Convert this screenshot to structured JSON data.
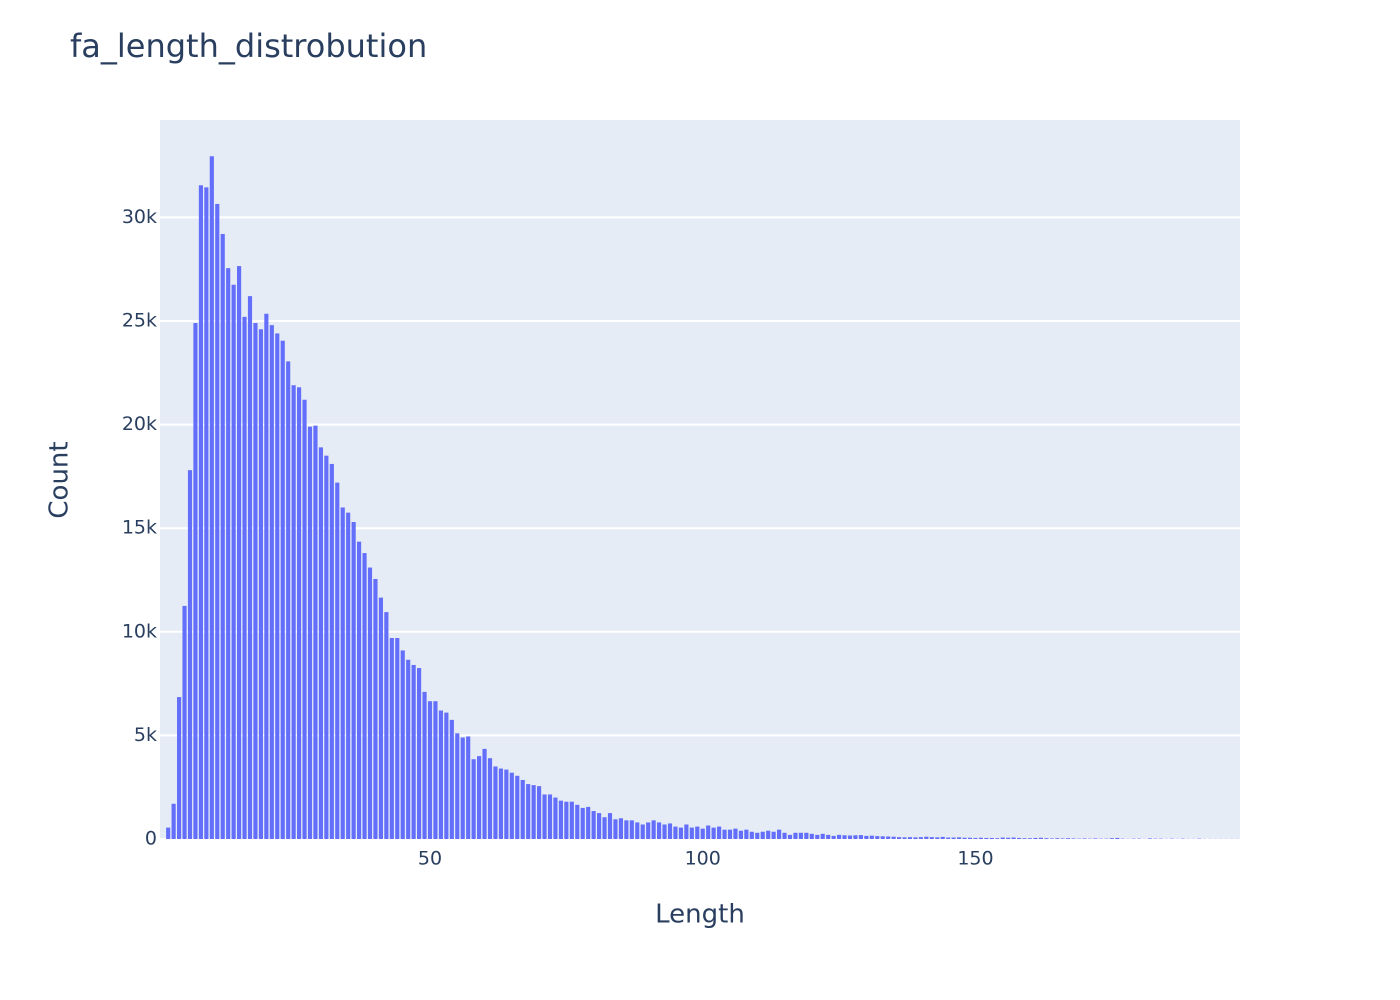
{
  "chart_data": {
    "type": "bar",
    "title": "fa_length_distrobution",
    "x_label": "Length",
    "y_label": "Count",
    "color": "#636efa",
    "grid": true,
    "x": [
      2,
      3,
      4,
      5,
      6,
      7,
      8,
      9,
      10,
      11,
      12,
      13,
      14,
      15,
      16,
      17,
      18,
      19,
      20,
      21,
      22,
      23,
      24,
      25,
      26,
      27,
      28,
      29,
      30,
      31,
      32,
      33,
      34,
      35,
      36,
      37,
      38,
      39,
      40,
      41,
      42,
      43,
      44,
      45,
      46,
      47,
      48,
      49,
      50,
      51,
      52,
      53,
      54,
      55,
      56,
      57,
      58,
      59,
      60,
      61,
      62,
      63,
      64,
      65,
      66,
      67,
      68,
      69,
      70,
      71,
      72,
      73,
      74,
      75,
      76,
      77,
      78,
      79,
      80,
      81,
      82,
      83,
      84,
      85,
      86,
      87,
      88,
      89,
      90,
      91,
      92,
      93,
      94,
      95,
      96,
      97,
      98,
      99,
      100,
      101,
      102,
      103,
      104,
      105,
      106,
      107,
      108,
      109,
      110,
      111,
      112,
      113,
      114,
      115,
      116,
      117,
      118,
      119,
      120,
      121,
      122,
      123,
      124,
      125,
      126,
      127,
      128,
      129,
      130,
      131,
      132,
      133,
      134,
      135,
      136,
      137,
      138,
      139,
      140,
      141,
      142,
      143,
      144,
      145,
      146,
      147,
      148,
      149,
      150,
      151,
      152,
      153,
      154,
      155,
      156,
      157,
      158,
      159,
      160,
      161,
      162,
      163,
      164,
      165,
      166,
      167,
      168,
      169,
      170,
      171,
      172,
      173,
      174,
      175,
      176,
      177,
      178,
      179,
      180,
      181,
      182,
      183,
      184,
      185,
      186,
      187,
      188,
      189,
      190,
      191,
      192,
      193,
      194,
      195,
      196,
      197,
      198
    ],
    "values": [
      550,
      1700,
      6850,
      11250,
      17800,
      24900,
      31550,
      31450,
      32950,
      30650,
      29200,
      27550,
      26750,
      27650,
      25200,
      26200,
      24900,
      24600,
      25350,
      24800,
      24400,
      24050,
      23050,
      21900,
      21800,
      21200,
      19900,
      19950,
      18900,
      18500,
      18100,
      17200,
      16000,
      15750,
      15300,
      14350,
      13800,
      13100,
      12550,
      11650,
      10950,
      9700,
      9700,
      9100,
      8650,
      8400,
      8250,
      7100,
      6650,
      6650,
      6200,
      6100,
      5750,
      5100,
      4900,
      4950,
      3850,
      4000,
      4350,
      3900,
      3500,
      3400,
      3350,
      3200,
      3050,
      2850,
      2650,
      2600,
      2550,
      2150,
      2150,
      2000,
      1850,
      1800,
      1800,
      1650,
      1500,
      1550,
      1350,
      1250,
      1050,
      1250,
      950,
      1000,
      900,
      900,
      800,
      700,
      800,
      900,
      800,
      700,
      750,
      600,
      550,
      700,
      550,
      600,
      500,
      650,
      550,
      600,
      450,
      450,
      500,
      400,
      450,
      350,
      300,
      350,
      400,
      350,
      450,
      300,
      200,
      300,
      300,
      300,
      250,
      200,
      250,
      200,
      150,
      200,
      180,
      170,
      180,
      190,
      150,
      160,
      140,
      130,
      120,
      110,
      90,
      80,
      90,
      80,
      90,
      110,
      90,
      80,
      100,
      70,
      70,
      80,
      60,
      60,
      50,
      60,
      50,
      50,
      40,
      70,
      60,
      70,
      50,
      40,
      40,
      50,
      60,
      40,
      30,
      40,
      30,
      40,
      30,
      20,
      30,
      20,
      30,
      20,
      20,
      40,
      50,
      20,
      10,
      20,
      20,
      10,
      30,
      20,
      20,
      10,
      20,
      10,
      20,
      10,
      10,
      20,
      10,
      10,
      10,
      10,
      10,
      10,
      10
    ],
    "xlim": [
      0.5,
      198.5
    ],
    "xticks": [
      50,
      100,
      150
    ],
    "ylim": [
      0,
      34700
    ],
    "yticks": [
      0,
      {
        "value": 5000,
        "label": "5k"
      },
      {
        "value": 10000,
        "label": "10k"
      },
      {
        "value": 15000,
        "label": "15k"
      },
      {
        "value": 20000,
        "label": "20k"
      },
      {
        "value": 25000,
        "label": "25k"
      },
      {
        "value": 30000,
        "label": "30k"
      }
    ]
  }
}
